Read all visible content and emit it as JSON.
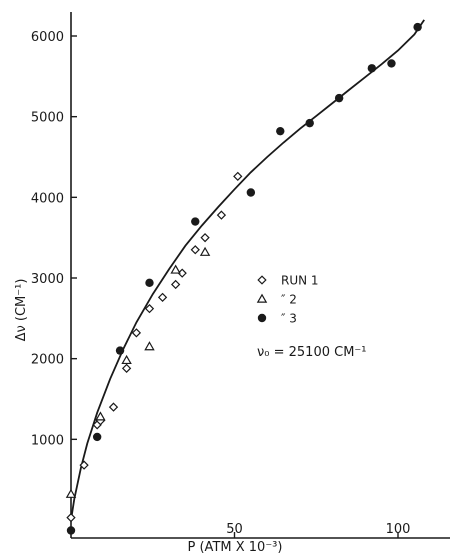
{
  "chart_data": {
    "type": "scatter",
    "title": "",
    "xlabel": "P (ATM X 10⁻³)",
    "ylabel": "Δν (CM⁻¹)",
    "xlim": [
      0,
      110
    ],
    "ylim": [
      -300,
      6350
    ],
    "x_ticks": [
      {
        "value": 50,
        "label": "50"
      },
      {
        "value": 100,
        "label": "100"
      }
    ],
    "y_ticks": [
      {
        "value": 1000,
        "label": "1000"
      },
      {
        "value": 2000,
        "label": "2000"
      },
      {
        "value": 3000,
        "label": "3000"
      },
      {
        "value": 4000,
        "label": "4000"
      },
      {
        "value": 5000,
        "label": "5000"
      },
      {
        "value": 6000,
        "label": "6000"
      }
    ],
    "grid": false,
    "legend_position": "center-right",
    "legend": [
      {
        "symbol": "open-diamond",
        "label": "RUN  1"
      },
      {
        "symbol": "open-triangle",
        "label": "″    2"
      },
      {
        "symbol": "filled-circle",
        "label": "″    3"
      }
    ],
    "annotation": "ν₀ = 25100 CM⁻¹",
    "fit_curve": {
      "x": [
        0,
        1,
        3,
        5,
        8,
        12,
        16,
        20,
        25,
        30,
        35,
        40,
        45,
        50,
        55,
        60,
        65,
        70,
        75,
        80,
        85,
        90,
        95,
        100,
        105,
        108
      ],
      "y": [
        0,
        260,
        640,
        950,
        1330,
        1750,
        2120,
        2450,
        2800,
        3110,
        3400,
        3650,
        3880,
        4100,
        4310,
        4500,
        4680,
        4850,
        5010,
        5170,
        5330,
        5490,
        5650,
        5820,
        6020,
        6200
      ]
    },
    "series": [
      {
        "symbol": "open-diamond",
        "x": [
          0,
          4,
          8,
          9,
          13,
          17,
          20,
          24,
          28,
          32,
          34,
          38,
          41,
          46,
          51
        ],
        "y": [
          30,
          680,
          1180,
          1230,
          1400,
          1880,
          2320,
          2620,
          2760,
          2920,
          3060,
          3350,
          3500,
          3780,
          4260
        ]
      },
      {
        "symbol": "open-triangle",
        "x": [
          0,
          9,
          17,
          24,
          32,
          41
        ],
        "y": [
          320,
          1280,
          1980,
          2150,
          3100,
          3320
        ]
      },
      {
        "symbol": "filled-circle",
        "x": [
          0,
          8,
          15,
          24,
          38,
          55,
          64,
          73,
          82,
          92,
          98,
          106
        ],
        "y": [
          -130,
          1030,
          2100,
          2940,
          3700,
          4060,
          4820,
          4920,
          5230,
          5600,
          5660,
          6110
        ]
      }
    ]
  }
}
